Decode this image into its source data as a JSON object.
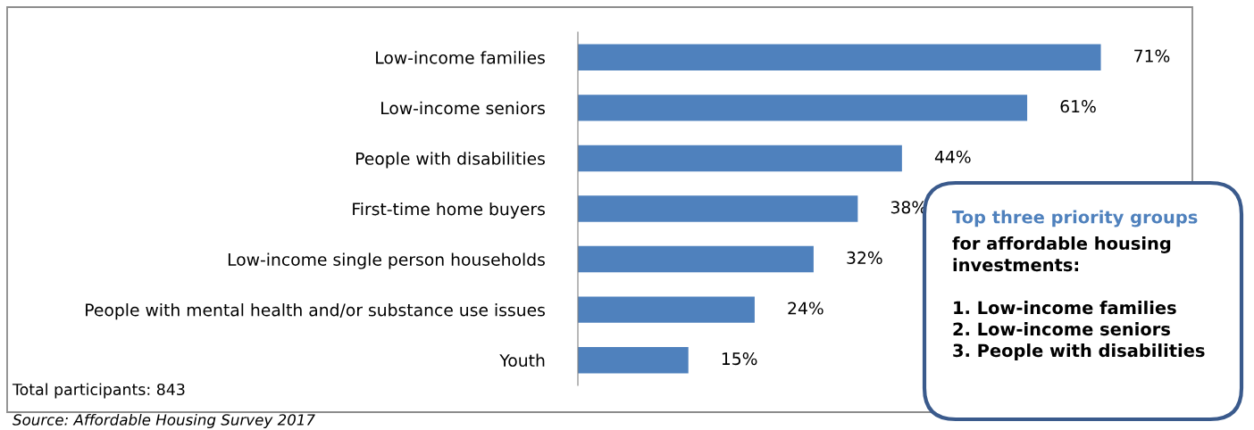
{
  "chart_data": {
    "type": "bar",
    "orientation": "horizontal",
    "categories": [
      "Low-income families",
      "Low-income seniors",
      "People with disabilities",
      "First-time home buyers",
      "Low-income single person households",
      "People with mental health and/or substance use issues",
      "Youth"
    ],
    "values": [
      71,
      61,
      44,
      38,
      32,
      24,
      15
    ],
    "color": "#4f81bd",
    "value_labels": [
      "71%",
      "61%",
      "44%",
      "38%",
      "32%",
      "24%",
      "15%"
    ],
    "grid": false,
    "legend": false,
    "annotations": [
      "Total participants: 843",
      "Source: Affordable Housing Survey 2017",
      "Top three priority groups",
      "for affordable housing\ninvestments:\n\n1. Low-income families\n2. Low-income seniors\n3. People with disabilities"
    ]
  }
}
